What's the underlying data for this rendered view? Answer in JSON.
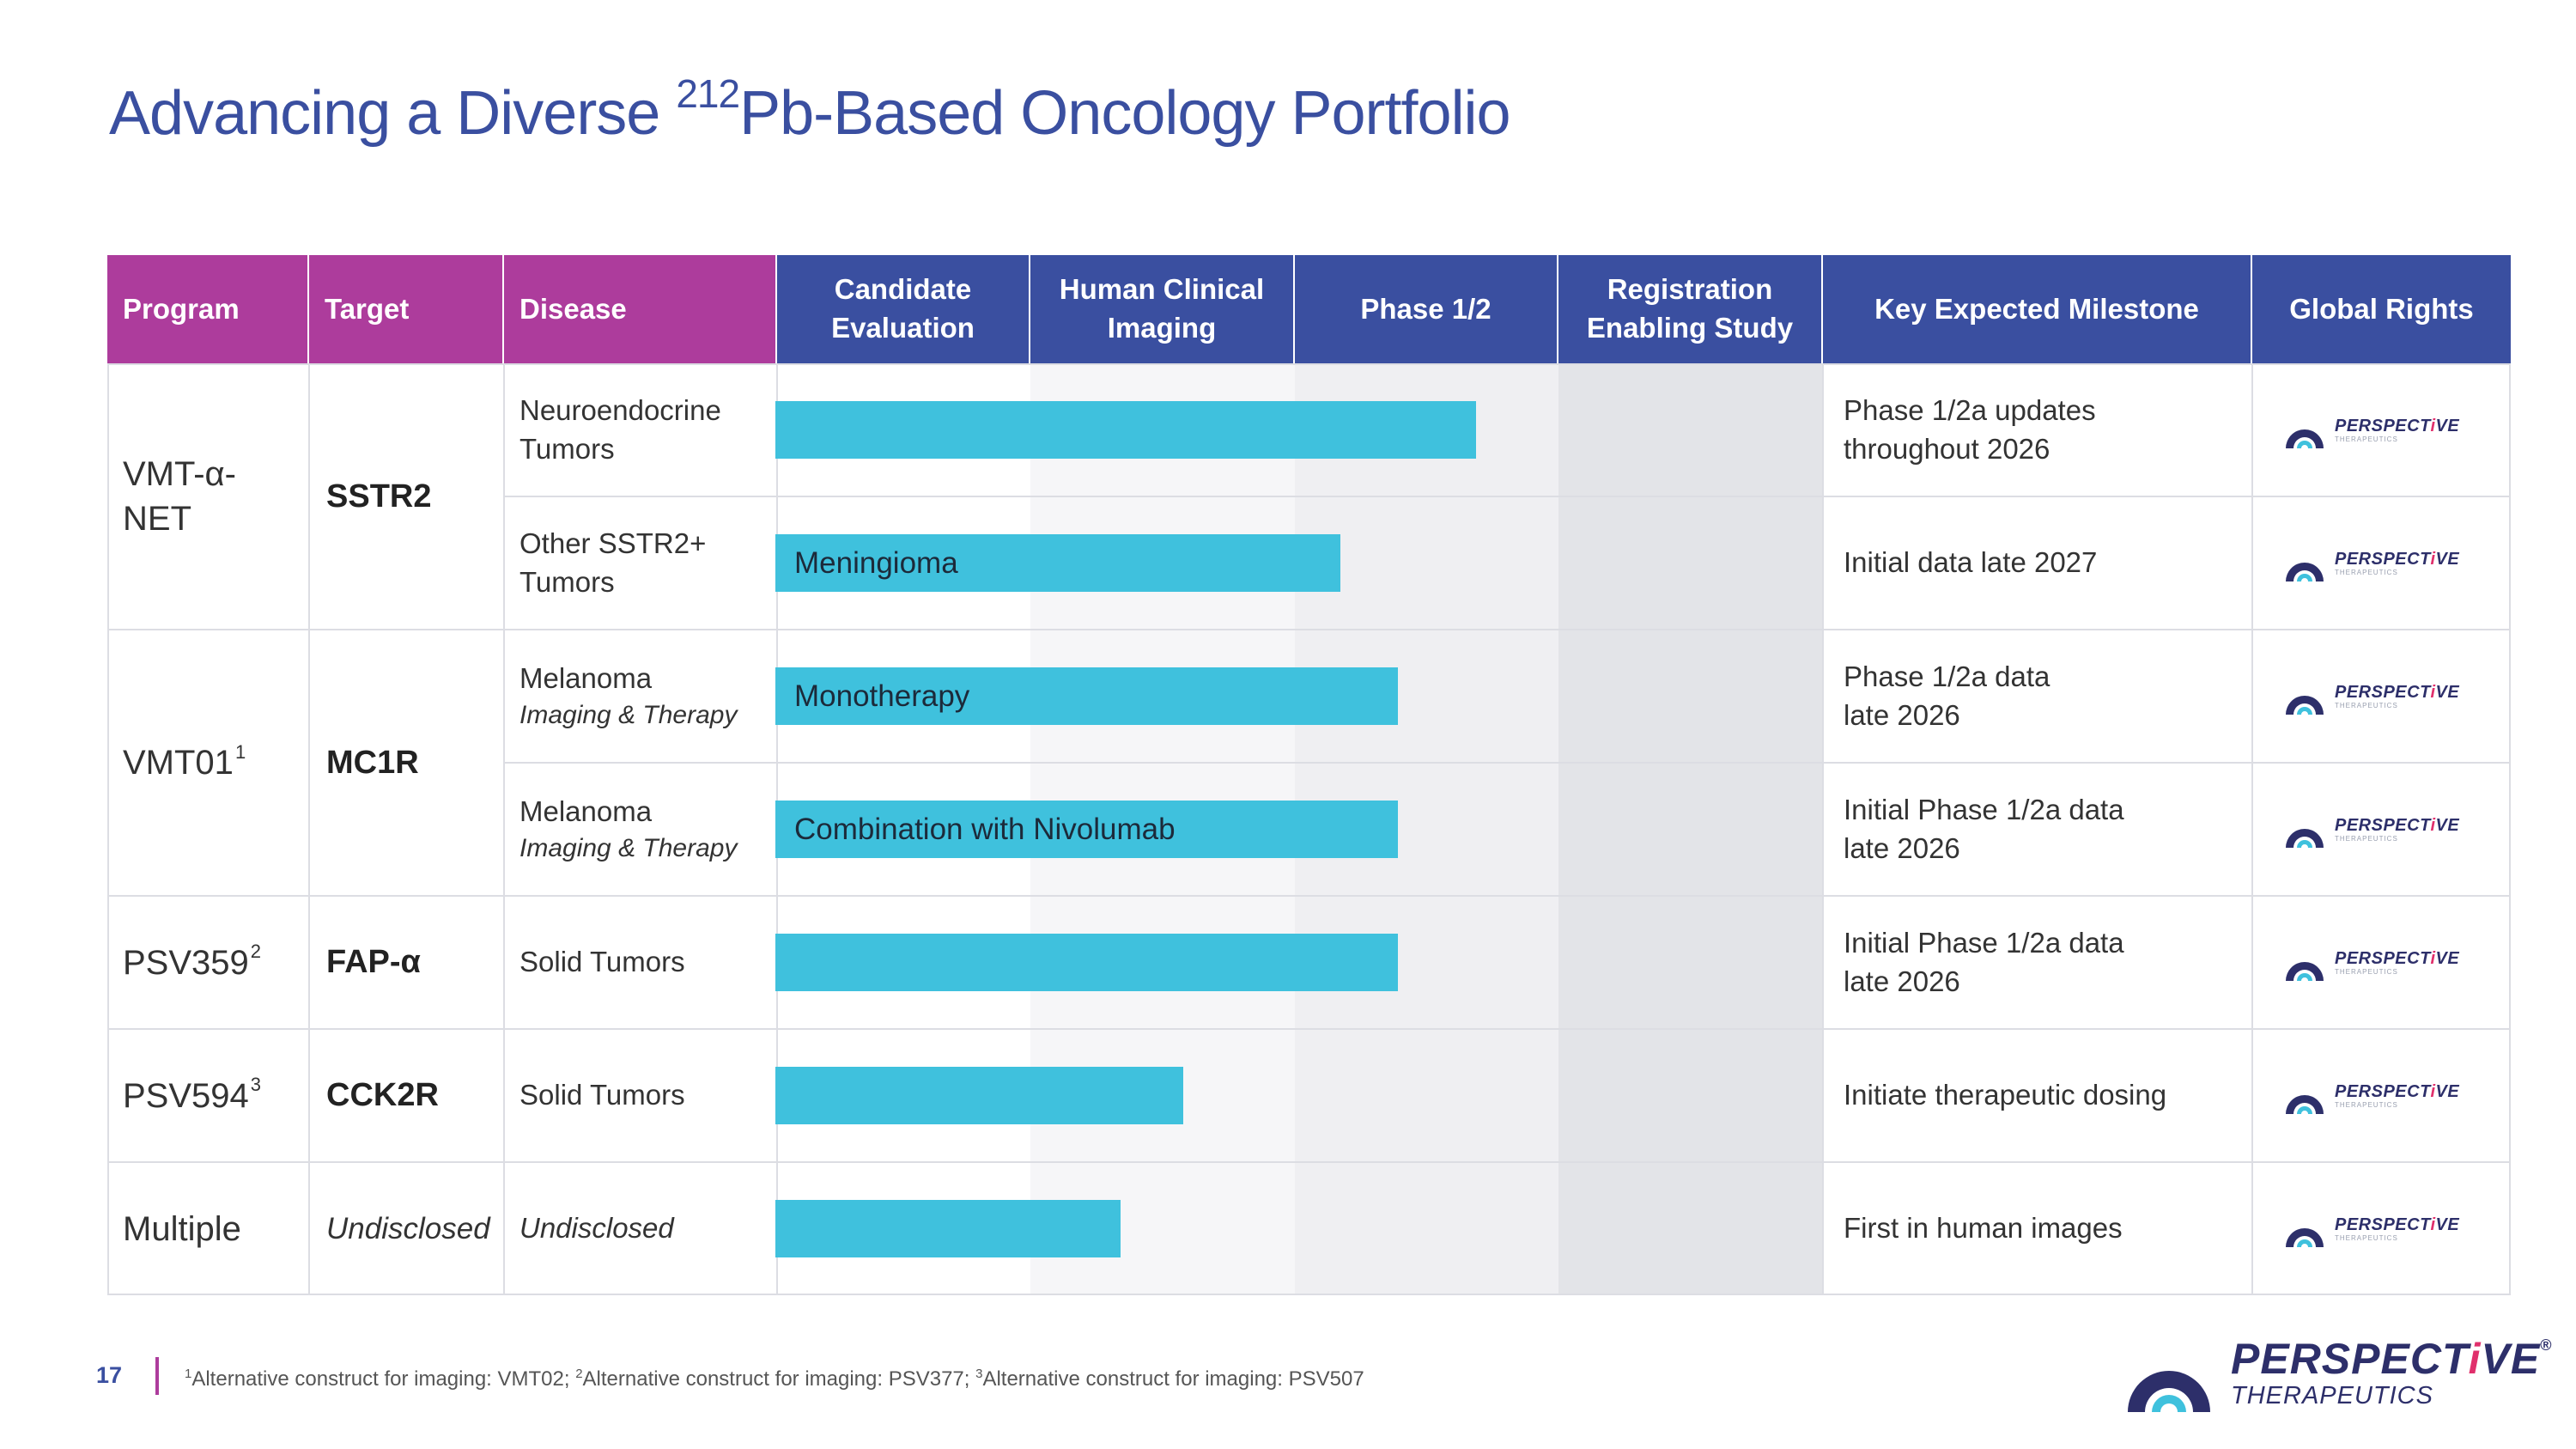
{
  "title": {
    "pre": "Advancing a Diverse ",
    "sup": "212",
    "post": "Pb-Based Oncology Portfolio"
  },
  "columns": {
    "program": "Program",
    "target": "Target",
    "disease": "Disease",
    "phase1": "Candidate\nEvaluation",
    "phase2": "Human Clinical\nImaging",
    "phase3": "Phase 1/2",
    "phase4": "Registration\nEnabling Study",
    "milestone": "Key Expected Milestone",
    "rights": "Global Rights"
  },
  "programs": [
    {
      "name": "VMT-α-\nNET",
      "sup": "",
      "target": "SSTR2"
    },
    {
      "name": "VMT01",
      "sup": "1",
      "target": "MC1R"
    },
    {
      "name": "PSV359",
      "sup": "2",
      "target": "FAP-α"
    },
    {
      "name": "PSV594",
      "sup": "3",
      "target": "CCK2R"
    },
    {
      "name": "Multiple",
      "sup": "",
      "target": "Undisclosed"
    }
  ],
  "rows": [
    {
      "disease": "Neuroendocrine\nTumors",
      "disease_sub": "",
      "progress": 0.67,
      "bar_label": "",
      "milestone": "Phase 1/2a updates\nthroughout 2026"
    },
    {
      "disease": "Other SSTR2+\nTumors",
      "disease_sub": "",
      "progress": 0.54,
      "bar_label": "Meningioma",
      "milestone": "Initial data late 2027"
    },
    {
      "disease": "Melanoma",
      "disease_sub": "Imaging & Therapy",
      "progress": 0.595,
      "bar_label": "Monotherapy",
      "milestone": "Phase 1/2a data\nlate 2026"
    },
    {
      "disease": "Melanoma",
      "disease_sub": "Imaging & Therapy",
      "progress": 0.595,
      "bar_label": "Combination with Nivolumab",
      "milestone": "Initial Phase 1/2a data\nlate 2026"
    },
    {
      "disease": "Solid Tumors",
      "disease_sub": "",
      "progress": 0.595,
      "bar_label": "",
      "milestone": "Initial Phase 1/2a data\nlate 2026"
    },
    {
      "disease": "Solid Tumors",
      "disease_sub": "",
      "progress": 0.39,
      "bar_label": "",
      "milestone": "Initiate therapeutic dosing"
    },
    {
      "disease": "Undisclosed",
      "disease_sub": "",
      "progress": 0.33,
      "bar_label": "",
      "milestone": "First in human images"
    }
  ],
  "rights_logo": {
    "word_a": "PERSPECT",
    "word_hl": "i",
    "word_b": "VE",
    "sub": "THERAPEUTICS"
  },
  "footer": {
    "page": "17",
    "notes": [
      {
        "sup": "1",
        "text": "Alternative construct for imaging: VMT02; "
      },
      {
        "sup": "2",
        "text": "Alternative construct for imaging: PSV377; "
      },
      {
        "sup": "3",
        "text": "Alternative construct for imaging: PSV507"
      }
    ]
  },
  "brand": {
    "word_a": "PERSPECT",
    "word_hl": "i",
    "word_b": "VE",
    "reg": "®",
    "sub": "THERAPEUTICS"
  },
  "colors": {
    "header_pink": "#ad3c9c",
    "header_blue": "#3a4fa0",
    "bar": "#3fc1dd",
    "title": "#3a4fa0"
  }
}
